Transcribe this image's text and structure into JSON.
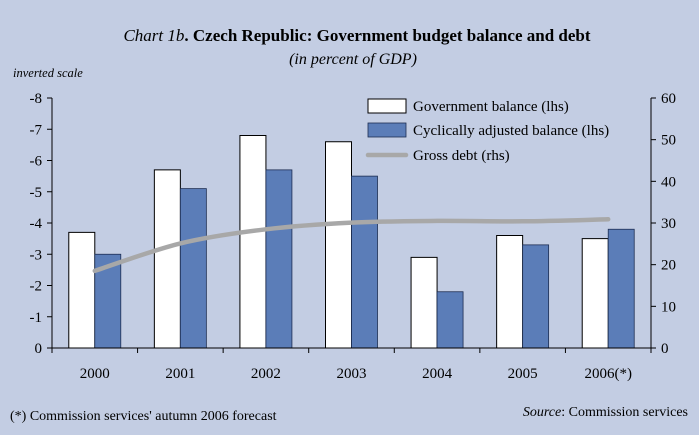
{
  "header": {
    "title_prefix": "Chart 1b",
    "title_sep": ". ",
    "title_main": "Czech Republic: Government budget balance and debt",
    "subtitle": "(in percent of GDP)",
    "scale_note": "inverted scale"
  },
  "footer": {
    "footnote": "(*) Commission services' autumn 2006 forecast",
    "source_label": "Source",
    "source_text": ": Commission services"
  },
  "colors": {
    "background": "#c3cde3",
    "government_balance": "#ffffff",
    "cyclically_adjusted": "#5b7db8",
    "gross_debt": "#a8a8a8"
  },
  "chart_data": {
    "type": "bar",
    "categories": [
      "2000",
      "2001",
      "2002",
      "2003",
      "2004",
      "2005",
      "2006(*)"
    ],
    "y_left": {
      "ylim": [
        0,
        -8
      ],
      "inverted": true,
      "ticks": [
        0,
        -1,
        -2,
        -3,
        -4,
        -5,
        -6,
        -7,
        -8
      ],
      "tick_labels": [
        "0",
        "-1",
        "-2",
        "-3",
        "-4",
        "-5",
        "-6",
        "-7",
        "-8"
      ]
    },
    "y_right": {
      "ylim": [
        0,
        60
      ],
      "ticks": [
        0,
        10,
        20,
        30,
        40,
        50,
        60
      ],
      "tick_labels": [
        "0",
        "10",
        "20",
        "30",
        "40",
        "50",
        "60"
      ]
    },
    "series": [
      {
        "name": "Government balance (lhs)",
        "type": "bar",
        "axis": "left",
        "values": [
          -3.7,
          -5.7,
          -6.8,
          -6.6,
          -2.9,
          -3.6,
          -3.5
        ]
      },
      {
        "name": "Cyclically adjusted balance (lhs)",
        "type": "bar",
        "axis": "left",
        "values": [
          -3.0,
          -5.1,
          -5.7,
          -5.5,
          -1.8,
          -3.3,
          -3.8
        ]
      },
      {
        "name": "Gross debt (rhs)",
        "type": "line",
        "axis": "right",
        "values": [
          18.5,
          25.1,
          28.5,
          30.1,
          30.5,
          30.4,
          30.9
        ]
      }
    ],
    "legend_position": "top-right",
    "grid": false
  }
}
